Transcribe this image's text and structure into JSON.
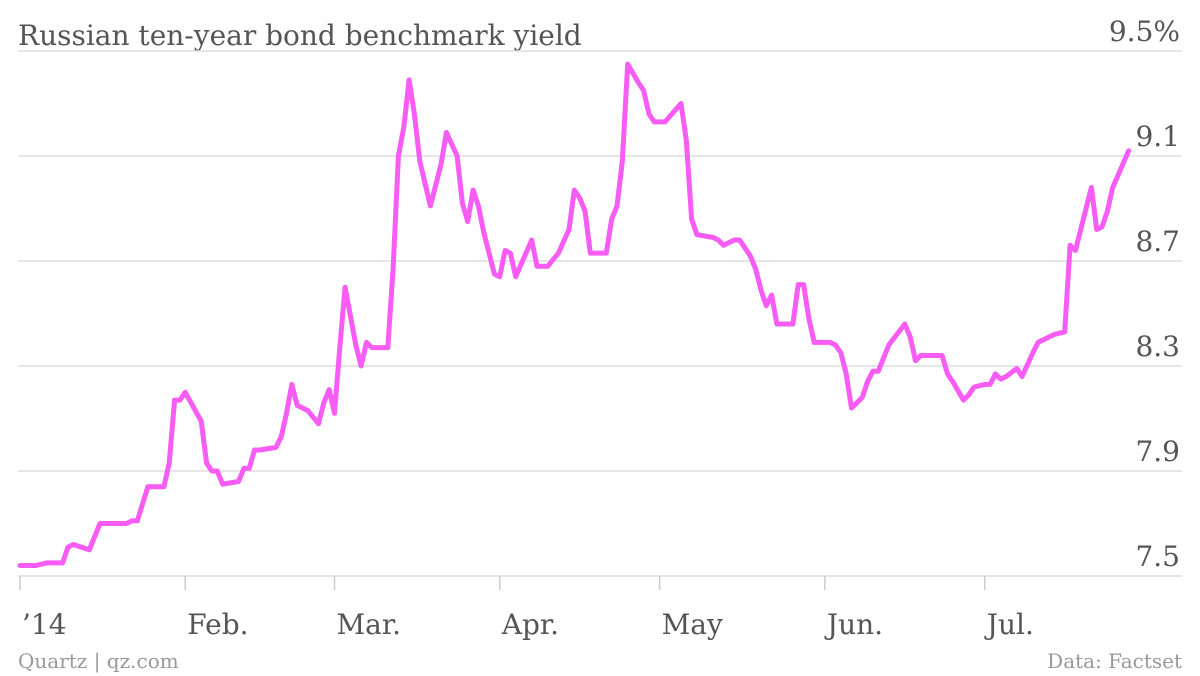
{
  "chart_data": {
    "type": "line",
    "title": "Russian ten-year bond benchmark yield",
    "credit": "Quartz | qz.com",
    "source": "Data: Factset",
    "color": "#f75cf5",
    "grid": true,
    "x": [
      0,
      3,
      5,
      7,
      8,
      9,
      10,
      13,
      15,
      20,
      21,
      22,
      24,
      27,
      28,
      29,
      30,
      31,
      34,
      35,
      36,
      37,
      38,
      41,
      42,
      43,
      44,
      45,
      48,
      49,
      50,
      51,
      52,
      54,
      56,
      57,
      58,
      59,
      60,
      61,
      63,
      64,
      65,
      66,
      69,
      70,
      71,
      72,
      73,
      74,
      75,
      77,
      78,
      79,
      80,
      82,
      83,
      84,
      85,
      86,
      87,
      89,
      90,
      91,
      92,
      93,
      96,
      97,
      99,
      101,
      103,
      104,
      105,
      106,
      107,
      110,
      111,
      112,
      113,
      114,
      116,
      117,
      118,
      119,
      121,
      124,
      125,
      126,
      127,
      130,
      131,
      132,
      134,
      135,
      137,
      138,
      139,
      140,
      141,
      142,
      145,
      146,
      147,
      148,
      149,
      152,
      153,
      154,
      155,
      156,
      157,
      158,
      159,
      160,
      161,
      163,
      166,
      167,
      168,
      169,
      170,
      171,
      173,
      174,
      175,
      177,
      178,
      179,
      181,
      182,
      183,
      184,
      185,
      187,
      188,
      190,
      191,
      194,
      196,
      197,
      198,
      201,
      202,
      203,
      204,
      205,
      208
    ],
    "values": [
      7.54,
      7.54,
      7.55,
      7.55,
      7.55,
      7.61,
      7.62,
      7.6,
      7.7,
      7.7,
      7.71,
      7.71,
      7.84,
      7.84,
      7.93,
      8.17,
      8.17,
      8.2,
      8.09,
      7.93,
      7.9,
      7.9,
      7.85,
      7.86,
      7.91,
      7.91,
      7.98,
      7.98,
      7.99,
      8.03,
      8.12,
      8.23,
      8.15,
      8.13,
      8.08,
      8.16,
      8.21,
      8.12,
      8.37,
      8.6,
      8.38,
      8.3,
      8.39,
      8.37,
      8.37,
      8.67,
      9.1,
      9.21,
      9.39,
      9.26,
      9.08,
      8.91,
      8.99,
      9.07,
      9.19,
      9.1,
      8.92,
      8.85,
      8.97,
      8.91,
      8.81,
      8.65,
      8.64,
      8.74,
      8.73,
      8.64,
      8.78,
      8.68,
      8.68,
      8.73,
      8.82,
      8.97,
      8.94,
      8.89,
      8.73,
      8.73,
      8.86,
      8.91,
      9.08,
      9.45,
      9.38,
      9.35,
      9.26,
      9.23,
      9.23,
      9.3,
      9.16,
      8.86,
      8.8,
      8.79,
      8.78,
      8.76,
      8.78,
      8.78,
      8.72,
      8.67,
      8.59,
      8.53,
      8.57,
      8.46,
      8.46,
      8.61,
      8.61,
      8.48,
      8.39,
      8.39,
      8.38,
      8.35,
      8.27,
      8.14,
      8.16,
      8.18,
      8.24,
      8.28,
      8.28,
      8.38,
      8.46,
      8.41,
      8.32,
      8.34,
      8.34,
      8.34,
      8.34,
      8.27,
      8.24,
      8.17,
      8.19,
      8.22,
      8.23,
      8.23,
      8.27,
      8.25,
      8.26,
      8.29,
      8.26,
      8.35,
      8.39,
      8.42,
      8.43,
      8.76,
      8.74,
      8.98,
      8.82,
      8.83,
      8.89,
      8.98,
      9.12
    ],
    "xlim": [
      0,
      218
    ],
    "xticks": [
      {
        "value": 0,
        "label": "’14"
      },
      {
        "value": 31,
        "label": "Feb."
      },
      {
        "value": 59,
        "label": "Mar."
      },
      {
        "value": 90,
        "label": "Apr."
      },
      {
        "value": 120,
        "label": "May"
      },
      {
        "value": 151,
        "label": "Jun."
      },
      {
        "value": 181,
        "label": "Jul."
      }
    ],
    "ylim": [
      7.5,
      9.5
    ],
    "yticks": [
      7.5,
      7.9,
      8.3,
      8.7,
      9.1,
      {
        "value": 9.5,
        "label": "9.5%"
      }
    ]
  }
}
